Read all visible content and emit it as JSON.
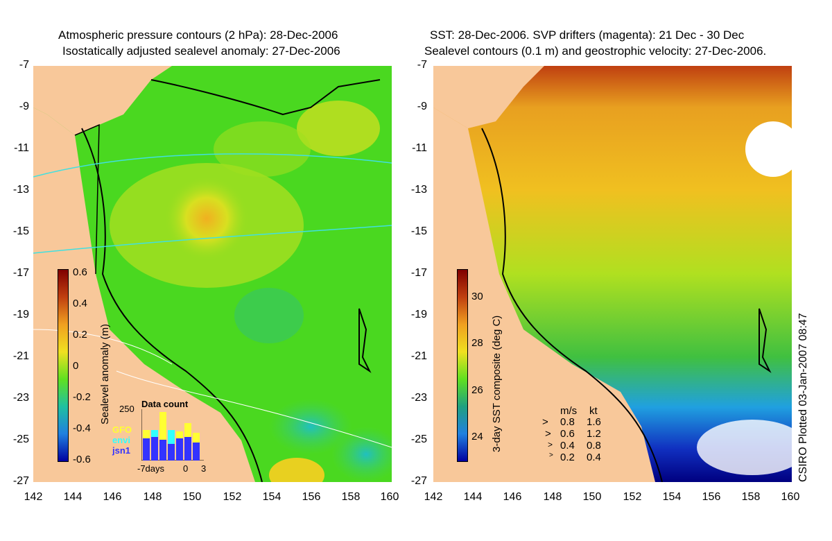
{
  "left_panel": {
    "title_line1": "Atmospheric pressure contours (2 hPa): 28-Dec-2006",
    "title_line2": "Isostatically adjusted sealevel anomaly: 27-Dec-2006",
    "colorbar": {
      "label": "Sealevel anomaly (m)",
      "ticks": [
        "0.6",
        "0.4",
        "0.2",
        "0",
        "-0.2",
        "-0.4",
        "-0.6"
      ]
    },
    "data_count": {
      "title": "Data count",
      "max_label": "250",
      "sources": [
        {
          "name": "GFO",
          "color": "#ffff33"
        },
        {
          "name": "envi",
          "color": "#33ffff"
        },
        {
          "name": "jsn1",
          "color": "#3333ff"
        }
      ],
      "xaxis": [
        "-7days",
        "0",
        "3"
      ]
    }
  },
  "right_panel": {
    "title_line1": "SST: 28-Dec-2006. SVP drifters (magenta): 21 Dec - 30 Dec",
    "title_line2": "Sealevel contours (0.1 m) and geostrophic velocity: 27-Dec-2006.",
    "colorbar": {
      "label": "3-day SST composite (deg C)",
      "ticks": [
        "30",
        "28",
        "26",
        "24"
      ]
    },
    "velocity_legend": {
      "header_ms": "m/s",
      "header_kt": "kt",
      "rows": [
        {
          "ms": "0.8",
          "kt": "1.6"
        },
        {
          "ms": "0.6",
          "kt": "1.2"
        },
        {
          "ms": "0.4",
          "kt": "0.8"
        },
        {
          "ms": "0.2",
          "kt": "0.4"
        }
      ]
    }
  },
  "axes": {
    "y_ticks": [
      "-7",
      "-9",
      "-11",
      "-13",
      "-15",
      "-17",
      "-19",
      "-21",
      "-23",
      "-25",
      "-27"
    ],
    "x_ticks": [
      "142",
      "144",
      "146",
      "148",
      "150",
      "152",
      "154",
      "156",
      "158",
      "160"
    ]
  },
  "credit": "CSIRO Plotted 03-Jan-2007 08:47",
  "colors": {
    "land": "#f8c89a",
    "sla_background": "#4ad820",
    "sst_warm": "#f0c020",
    "sst_cool": "#1040d0"
  }
}
